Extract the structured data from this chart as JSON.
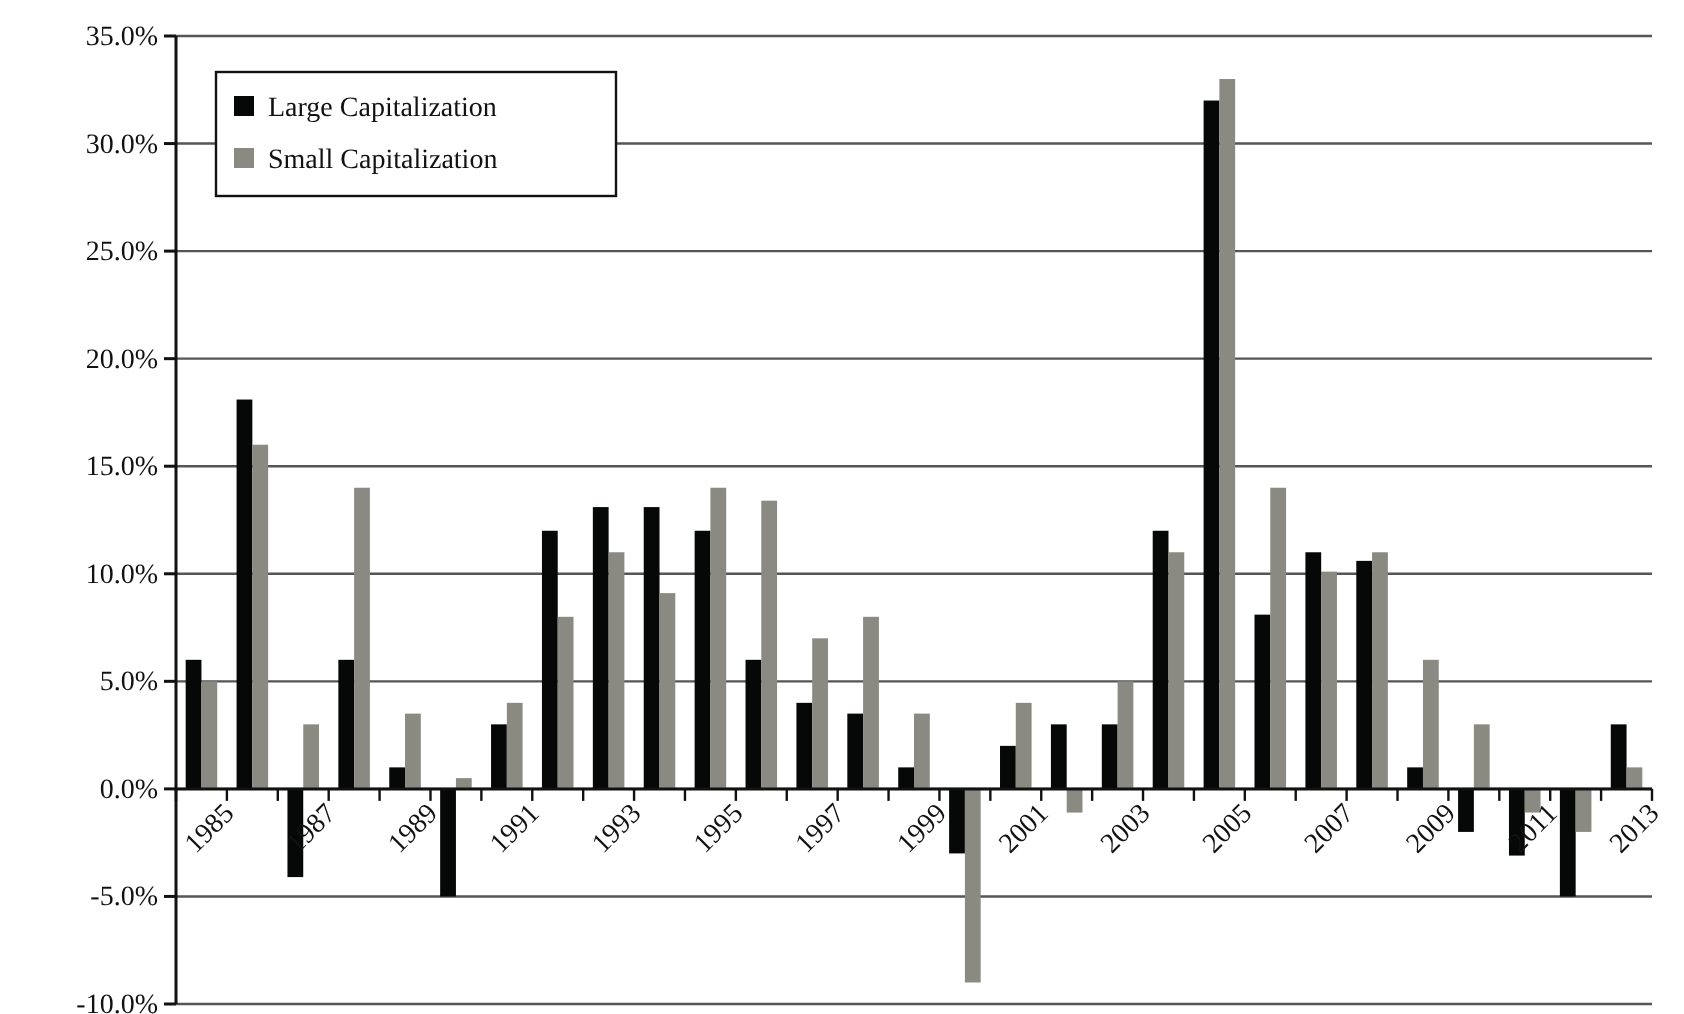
{
  "chart_data": {
    "type": "bar",
    "categories": [
      "1985",
      null,
      "1987",
      null,
      "1989",
      null,
      "1991",
      null,
      "1993",
      null,
      "1995",
      null,
      "1997",
      null,
      "1999",
      null,
      "2001",
      null,
      "2003",
      null,
      "2005",
      null,
      "2007",
      null,
      "2009",
      null,
      "2011",
      null,
      "2013"
    ],
    "series": [
      {
        "name": "Large Capitalization",
        "color": "#050807",
        "values": [
          6.0,
          18.1,
          -4.1,
          6.0,
          1.0,
          -5.0,
          3.0,
          12.0,
          13.1,
          13.1,
          12.0,
          6.0,
          4.0,
          3.5,
          1.0,
          -3.0,
          2.0,
          3.0,
          3.0,
          12.0,
          32.0,
          8.1,
          11.0,
          10.6,
          1.0,
          -2.0,
          -3.1,
          -5.0,
          3.0
        ]
      },
      {
        "name": "Small Capitalization",
        "color": "#8a8a82",
        "values": [
          5.0,
          16.0,
          3.0,
          14.0,
          3.5,
          0.5,
          4.0,
          8.0,
          11.0,
          9.1,
          14.0,
          13.4,
          7.0,
          8.0,
          3.5,
          -9.0,
          4.0,
          -1.1,
          5.0,
          11.0,
          33.0,
          14.0,
          10.1,
          11.0,
          6.0,
          3.0,
          -1.1,
          -2.0,
          1.0
        ]
      }
    ],
    "ylim": [
      -10,
      35
    ],
    "yticks": [
      {
        "value": -10,
        "label": "-10.0%"
      },
      {
        "value": -5,
        "label": "-5.0%"
      },
      {
        "value": 0,
        "label": "0.0%"
      },
      {
        "value": 5,
        "label": "5.0%"
      },
      {
        "value": 10,
        "label": "10.0%"
      },
      {
        "value": 15,
        "label": "15.0%"
      },
      {
        "value": 20,
        "label": "20.0%"
      },
      {
        "value": 25,
        "label": "25.0%"
      },
      {
        "value": 30,
        "label": "30.0%"
      },
      {
        "value": 35,
        "label": "35.0%"
      }
    ],
    "grid": "y",
    "legend": "top left"
  }
}
